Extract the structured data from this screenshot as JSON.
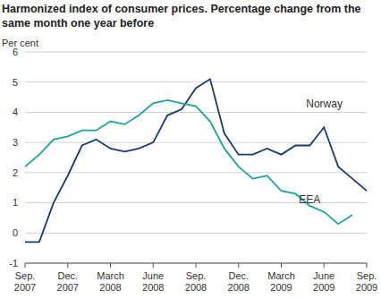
{
  "chart_data": {
    "type": "line",
    "title": "Harmonized index of consumer prices. Percentage change from the same month one year before",
    "y_label": "Per cent",
    "categories": [
      "Sep.\n2007",
      null,
      null,
      "Dec.\n2007",
      null,
      null,
      "March\n2008",
      null,
      null,
      "June\n2008",
      null,
      null,
      "Sep.\n2008",
      null,
      null,
      "Dec.\n2008",
      null,
      null,
      "March\n2009",
      null,
      null,
      "June\n2009",
      null,
      null,
      "Sep.\n2009"
    ],
    "series": [
      {
        "name": "Norway",
        "color": "#1b3b6f",
        "values": [
          -0.3,
          -0.3,
          1.0,
          1.9,
          2.9,
          3.1,
          2.8,
          2.7,
          2.8,
          3.0,
          3.9,
          4.1,
          4.8,
          5.1,
          3.3,
          2.6,
          2.6,
          2.8,
          2.6,
          2.9,
          2.9,
          3.5,
          2.2,
          1.8,
          1.4
        ]
      },
      {
        "name": "EEA",
        "color": "#20a395",
        "values": [
          2.2,
          2.6,
          3.1,
          3.2,
          3.4,
          3.4,
          3.7,
          3.6,
          3.9,
          4.3,
          4.4,
          4.3,
          4.2,
          3.7,
          2.8,
          2.2,
          1.8,
          1.9,
          1.4,
          1.3,
          0.9,
          0.7,
          0.3,
          0.6,
          null
        ]
      }
    ],
    "ylim": [
      -1,
      6
    ],
    "yticks": [
      -1,
      0,
      1,
      2,
      3,
      4,
      5,
      6
    ],
    "grid": true
  }
}
